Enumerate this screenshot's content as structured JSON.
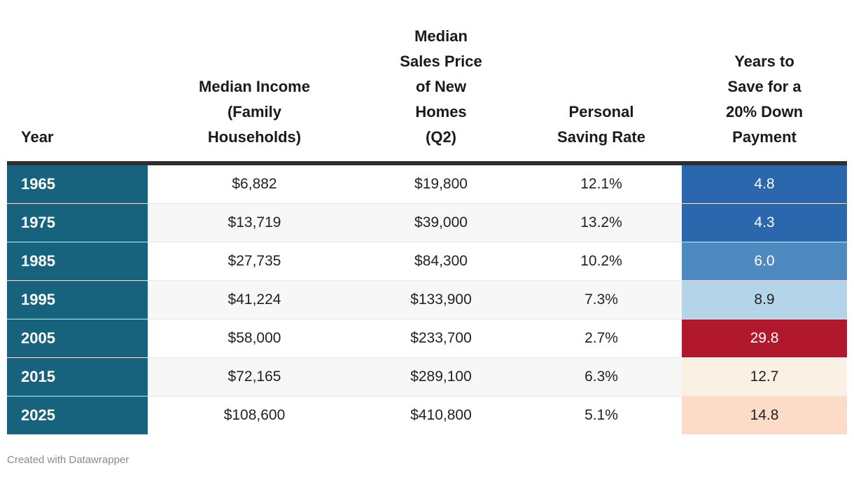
{
  "header": {
    "columns": [
      {
        "label": "Year"
      },
      {
        "label": "Median Income\n(Family\nHouseholds)"
      },
      {
        "label": "Median\nSales Price\nof New\nHomes\n(Q2)"
      },
      {
        "label": "Personal\nSaving Rate"
      },
      {
        "label": "Years to\nSave for a\n20% Down\nPayment"
      }
    ]
  },
  "colors": {
    "year_column_bg": "#17637e",
    "header_border": "#2e2e2e",
    "zebra_stripe": "#f7f7f7",
    "heat_strong_blue": "#2b67ac",
    "heat_medium_blue": "#4e8ac0",
    "heat_light_blue": "#b3d4e9",
    "heat_strong_red": "#b2182b",
    "heat_cream": "#faf0e4",
    "heat_peach": "#fcdcc6"
  },
  "rows": [
    {
      "year": "1965",
      "income": "$6,882",
      "price": "$19,800",
      "saving_rate": "12.1%",
      "years": "4.8",
      "years_bg": "#2b67ac",
      "years_fg": "#ffffff"
    },
    {
      "year": "1975",
      "income": "$13,719",
      "price": "$39,000",
      "saving_rate": "13.2%",
      "years": "4.3",
      "years_bg": "#2b67ac",
      "years_fg": "#ffffff"
    },
    {
      "year": "1985",
      "income": "$27,735",
      "price": "$84,300",
      "saving_rate": "10.2%",
      "years": "6.0",
      "years_bg": "#4e8ac0",
      "years_fg": "#ffffff"
    },
    {
      "year": "1995",
      "income": "$41,224",
      "price": "$133,900",
      "saving_rate": "7.3%",
      "years": "8.9",
      "years_bg": "#b3d4e9",
      "years_fg": "#222222"
    },
    {
      "year": "2005",
      "income": "$58,000",
      "price": "$233,700",
      "saving_rate": "2.7%",
      "years": "29.8",
      "years_bg": "#b2182b",
      "years_fg": "#ffffff"
    },
    {
      "year": "2015",
      "income": "$72,165",
      "price": "$289,100",
      "saving_rate": "6.3%",
      "years": "12.7",
      "years_bg": "#faf0e4",
      "years_fg": "#222222"
    },
    {
      "year": "2025",
      "income": "$108,600",
      "price": "$410,800",
      "saving_rate": "5.1%",
      "years": "14.8",
      "years_bg": "#fcdcc6",
      "years_fg": "#222222"
    }
  ],
  "footer": {
    "attribution": "Created with Datawrapper"
  },
  "chart_data": {
    "type": "table",
    "title": "",
    "columns": [
      "Year",
      "Median Income (Family Households)",
      "Median Sales Price of New Homes (Q2)",
      "Personal Saving Rate",
      "Years to Save for a 20% Down Payment"
    ],
    "rows": [
      {
        "year": 1965,
        "median_income_usd": 6882,
        "median_new_home_price_q2_usd": 19800,
        "personal_saving_rate_pct": 12.1,
        "years_to_save_20pct_down": 4.8
      },
      {
        "year": 1975,
        "median_income_usd": 13719,
        "median_new_home_price_q2_usd": 39000,
        "personal_saving_rate_pct": 13.2,
        "years_to_save_20pct_down": 4.3
      },
      {
        "year": 1985,
        "median_income_usd": 27735,
        "median_new_home_price_q2_usd": 84300,
        "personal_saving_rate_pct": 10.2,
        "years_to_save_20pct_down": 6.0
      },
      {
        "year": 1995,
        "median_income_usd": 41224,
        "median_new_home_price_q2_usd": 133900,
        "personal_saving_rate_pct": 7.3,
        "years_to_save_20pct_down": 8.9
      },
      {
        "year": 2005,
        "median_income_usd": 58000,
        "median_new_home_price_q2_usd": 233700,
        "personal_saving_rate_pct": 2.7,
        "years_to_save_20pct_down": 29.8
      },
      {
        "year": 2015,
        "median_income_usd": 72165,
        "median_new_home_price_q2_usd": 289100,
        "personal_saving_rate_pct": 6.3,
        "years_to_save_20pct_down": 12.7
      },
      {
        "year": 2025,
        "median_income_usd": 108600,
        "median_new_home_price_q2_usd": 410800,
        "personal_saving_rate_pct": 5.1,
        "years_to_save_20pct_down": 14.8
      }
    ],
    "heatmap_column": "Years to Save for a 20% Down Payment",
    "heatmap_scale": "diverging blue (low) to red (high)",
    "attribution": "Created with Datawrapper"
  }
}
